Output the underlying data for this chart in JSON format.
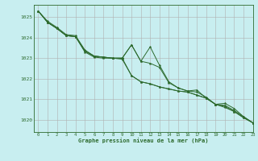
{
  "title": "Graphe pression niveau de la mer (hPa)",
  "background_color": "#c8eef0",
  "grid_color": "#b0b0b0",
  "line_color": "#2d6a2d",
  "xlim": [
    -0.5,
    23
  ],
  "ylim": [
    1019.4,
    1025.6
  ],
  "yticks": [
    1020,
    1021,
    1022,
    1023,
    1024,
    1025
  ],
  "xticks": [
    0,
    1,
    2,
    3,
    4,
    5,
    6,
    7,
    8,
    9,
    10,
    11,
    12,
    13,
    14,
    15,
    16,
    17,
    18,
    19,
    20,
    21,
    22,
    23
  ],
  "lines": [
    [
      1025.3,
      1024.75,
      1024.45,
      1024.1,
      1024.05,
      1023.35,
      1023.1,
      1023.05,
      1023.0,
      1023.0,
      1023.65,
      1022.85,
      1023.55,
      1022.65,
      1021.85,
      1021.55,
      1021.4,
      1021.45,
      1021.05,
      1020.75,
      1020.8,
      1020.55,
      1020.15,
      1019.85
    ],
    [
      1025.3,
      1024.75,
      1024.45,
      1024.1,
      1024.05,
      1023.3,
      1023.05,
      1023.0,
      1023.0,
      1022.95,
      1022.15,
      1021.85,
      1021.75,
      1021.6,
      1021.5,
      1021.4,
      1021.35,
      1021.2,
      1021.05,
      1020.75,
      1020.65,
      1020.4,
      1020.1,
      1019.85
    ],
    [
      1025.3,
      1024.75,
      1024.45,
      1024.1,
      1024.05,
      1023.35,
      1023.1,
      1023.05,
      1023.0,
      1023.0,
      1023.65,
      1022.85,
      1022.75,
      1022.55,
      1021.8,
      1021.55,
      1021.4,
      1021.35,
      1021.1,
      1020.75,
      1020.7,
      1020.45,
      1020.15,
      1019.85
    ],
    [
      1025.3,
      1024.8,
      1024.5,
      1024.15,
      1024.1,
      1023.4,
      1023.1,
      1023.05,
      1023.0,
      1023.0,
      1022.15,
      1021.85,
      1021.75,
      1021.6,
      1021.5,
      1021.4,
      1021.35,
      1021.2,
      1021.05,
      1020.75,
      1020.6,
      1020.4,
      1020.1,
      1019.85
    ]
  ]
}
